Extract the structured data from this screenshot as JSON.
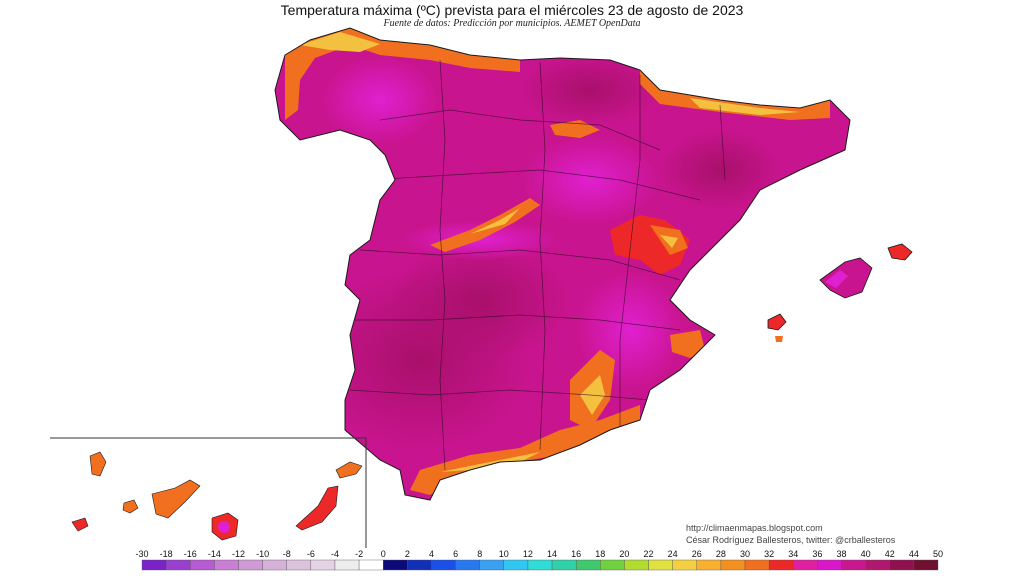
{
  "title": "Temperatura máxima (ºC) prevista para el miércoles 23 de agosto de 2023",
  "subtitle": "Fuente de datos: Predicción por municipios. AEMET OpenData",
  "credits": {
    "blog": "http://climaenmapas.blogspot.com",
    "author": "César Rodríguez Ballesteros, twitter: @crballesteros"
  },
  "legend": {
    "ticks": [
      "-30",
      "-18",
      "-16",
      "-14",
      "-12",
      "-10",
      "-8",
      "-6",
      "-4",
      "-2",
      "0",
      "2",
      "4",
      "6",
      "8",
      "10",
      "12",
      "14",
      "16",
      "18",
      "20",
      "22",
      "24",
      "26",
      "28",
      "30",
      "32",
      "34",
      "36",
      "38",
      "40",
      "42",
      "44",
      "50"
    ],
    "colors": [
      "#7a22c8",
      "#9b3fd0",
      "#b85ad4",
      "#c97fd4",
      "#cf9ad6",
      "#d6b1d9",
      "#dcc3dc",
      "#e4d3e4",
      "#ededed",
      "#ffffff",
      "#0a0a78",
      "#1030b8",
      "#1a50e8",
      "#2a78f0",
      "#3aa0f2",
      "#30c8f0",
      "#30dcd8",
      "#30d0a8",
      "#40c870",
      "#70d040",
      "#b0dc30",
      "#e0e040",
      "#f4d040",
      "#f8b030",
      "#f49020",
      "#f07020",
      "#ec2828",
      "#e020a0",
      "#d818c8",
      "#c81890",
      "#b01870",
      "#901050",
      "#701030"
    ]
  },
  "map_colors": {
    "hot_core": "#a8106a",
    "very_hot": "#c8148e",
    "hot": "#e020c0",
    "warm_mid": "#ec2828",
    "warm": "#f07020",
    "mild": "#f4c040",
    "sea": "#ffffff",
    "border": "#1a1a1a"
  }
}
